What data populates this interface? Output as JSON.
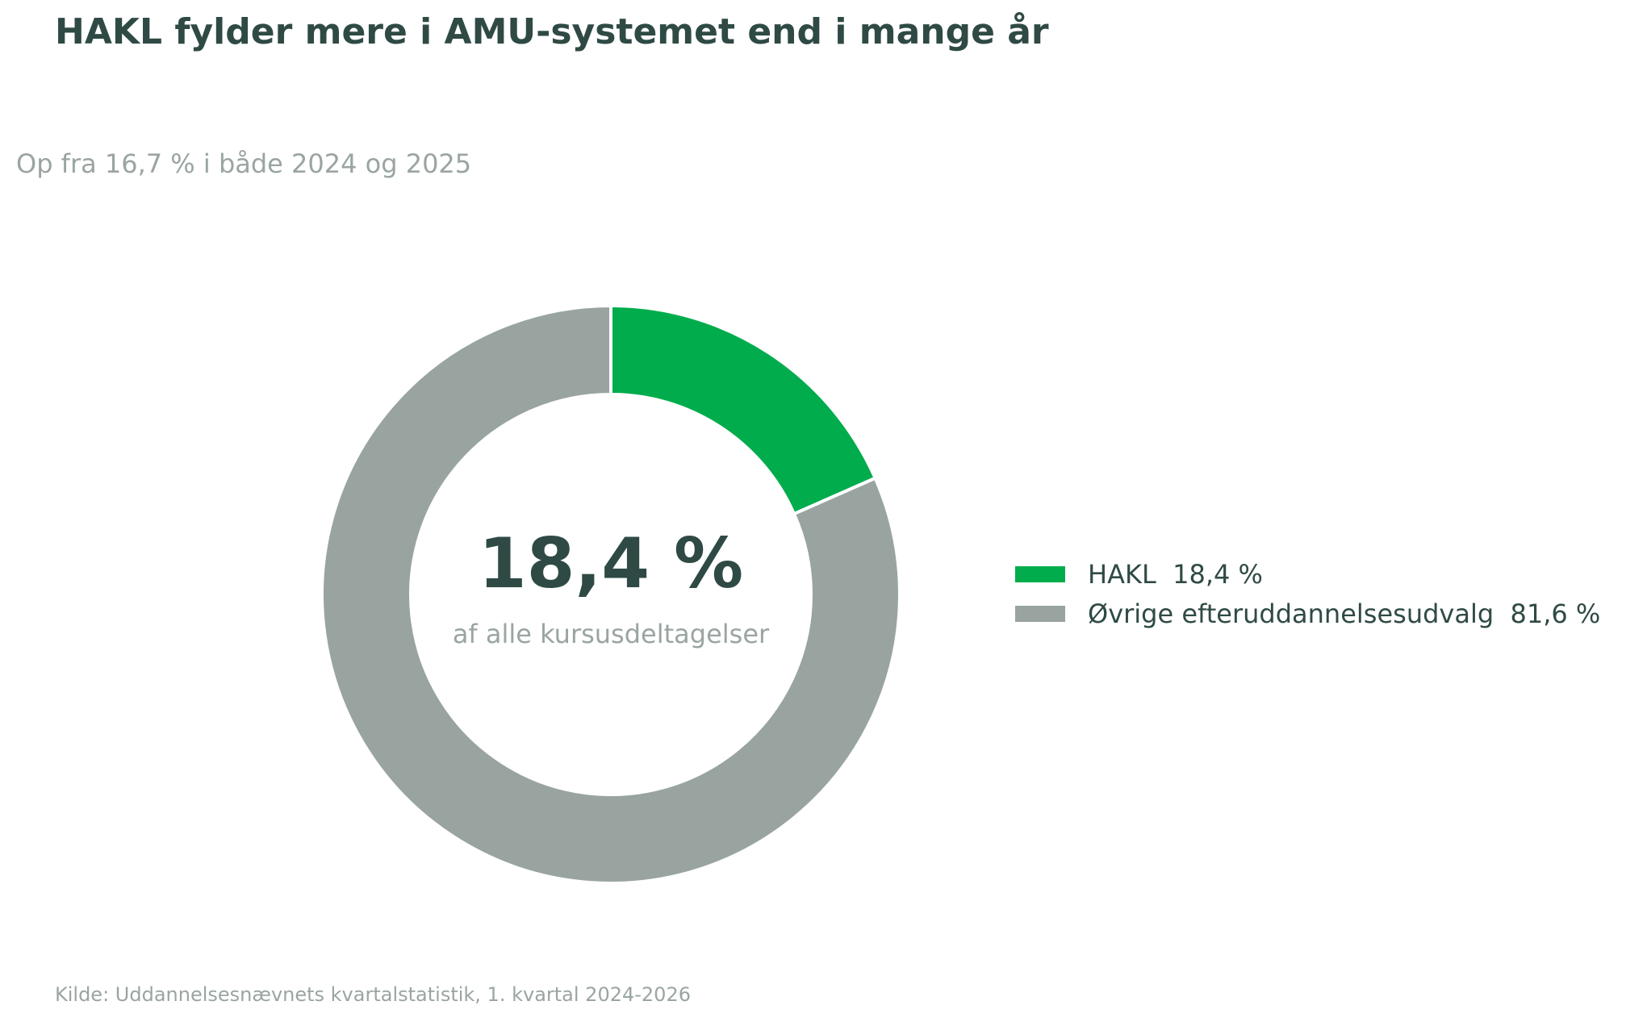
{
  "title": "HAKL fylder mere i AMU-systemet end i mange år",
  "subtitle": "Op fra 16,7 % i både 2024 og 2025",
  "source": "Kilde: Uddannelsesnævnets kvartalstatistik, 1. kvartal 2024-2026",
  "center": {
    "value": "18,4 %",
    "caption": "af alle kursusdeltagelser"
  },
  "chart_data": {
    "type": "pie",
    "donut": true,
    "start_angle": "top",
    "direction": "clockwise",
    "legend_position": "right",
    "slices": [
      {
        "name": "HAKL",
        "value": 18.4,
        "label": "HAKL  18,4 %",
        "color": "#00ac4c"
      },
      {
        "name": "Øvrige efteruddannelsesudvalg",
        "value": 81.6,
        "label": "Øvrige efteruddannelsesudvalg  81,6 %",
        "color": "#99a4a0"
      }
    ]
  }
}
